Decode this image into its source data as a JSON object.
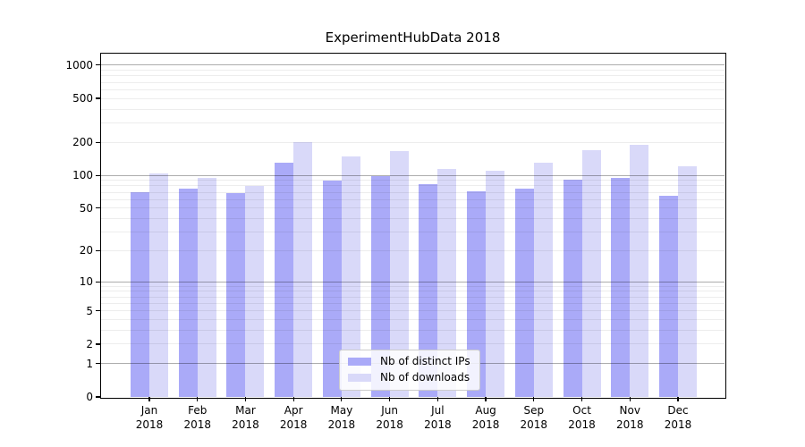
{
  "title": "ExperimentHubData 2018",
  "chart_data": {
    "type": "bar",
    "title": "ExperimentHubData 2018",
    "categories": [
      "Jan 2018",
      "Feb 2018",
      "Mar 2018",
      "Apr 2018",
      "May 2018",
      "Jun 2018",
      "Jul 2018",
      "Aug 2018",
      "Sep 2018",
      "Oct 2018",
      "Nov 2018",
      "Dec 2018"
    ],
    "series": [
      {
        "name": "Nb of distinct IPs",
        "color": "#aaaaf8",
        "values": [
          70,
          75,
          69,
          130,
          90,
          98,
          83,
          71,
          76,
          92,
          94,
          65
        ]
      },
      {
        "name": "Nb of downloads",
        "color": "#d9d9f9",
        "values": [
          104,
          95,
          80,
          200,
          150,
          165,
          115,
          110,
          130,
          170,
          188,
          120
        ]
      }
    ],
    "yscale": "log10(value+1)",
    "yticks": [
      0,
      1,
      2,
      5,
      10,
      20,
      50,
      100,
      200,
      500,
      1000
    ],
    "ylim": [
      0,
      1272
    ],
    "grid": true,
    "legend_position": "lower center",
    "grid_major_color": "rgba(0,0,0,0.32)",
    "grid_minor_color": "rgba(0,0,0,0.07)"
  }
}
